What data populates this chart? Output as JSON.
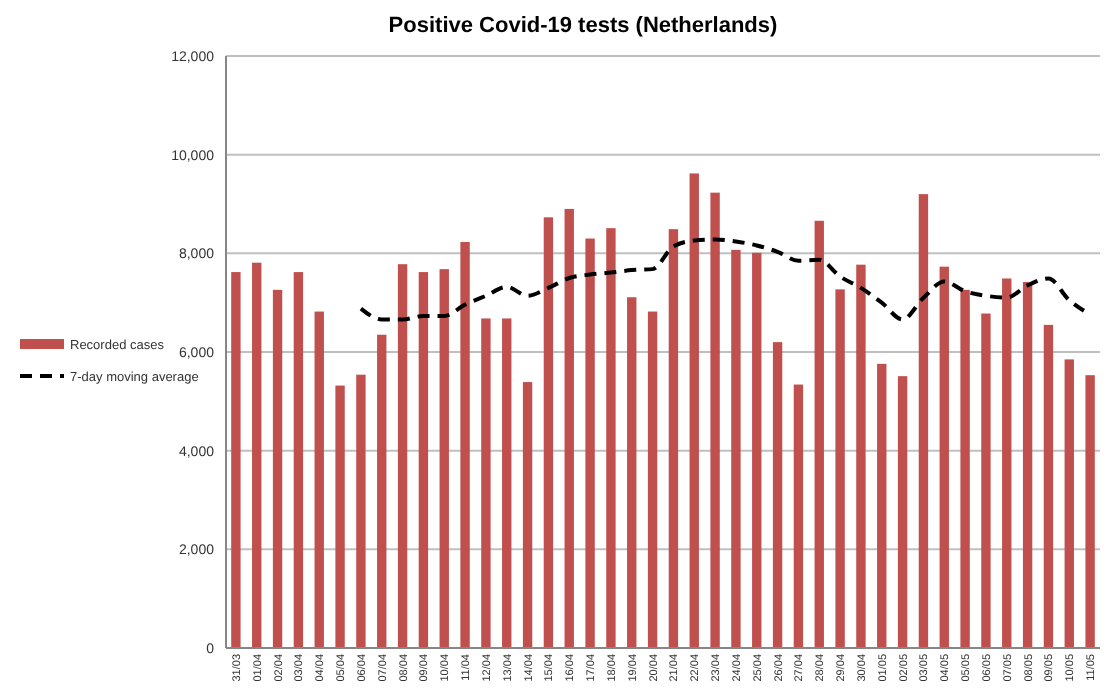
{
  "chart_data": {
    "type": "bar",
    "title": "Positive Covid-19 tests (Netherlands)",
    "categories": [
      "31/03",
      "01/04",
      "02/04",
      "03/04",
      "04/04",
      "05/04",
      "06/04",
      "07/04",
      "08/04",
      "09/04",
      "10/04",
      "11/04",
      "12/04",
      "13/04",
      "14/04",
      "15/04",
      "16/04",
      "17/04",
      "18/04",
      "19/04",
      "20/04",
      "21/04",
      "22/04",
      "23/04",
      "24/04",
      "25/04",
      "26/04",
      "27/04",
      "28/04",
      "29/04",
      "30/04",
      "01/05",
      "02/05",
      "03/05",
      "04/05",
      "05/05",
      "06/05",
      "07/05",
      "08/05",
      "09/05",
      "10/05",
      "11/05"
    ],
    "series": [
      {
        "name": "Recorded cases",
        "color": "#c0504d",
        "values": [
          7620,
          7810,
          7260,
          7620,
          6820,
          5320,
          5540,
          6350,
          7780,
          7620,
          7680,
          8230,
          6680,
          6680,
          5390,
          8730,
          8900,
          8300,
          8510,
          7110,
          6820,
          8490,
          9620,
          9230,
          8070,
          8010,
          6200,
          5340,
          8660,
          7270,
          7770,
          5760,
          5510,
          9200,
          7730,
          7260,
          6780,
          7490,
          7420,
          6550,
          5850,
          5530
        ]
      },
      {
        "name": "7-day moving average",
        "type": "line",
        "line_style": "dashed",
        "color": "#000000",
        "values": [
          null,
          null,
          null,
          null,
          null,
          null,
          6880,
          6660,
          6660,
          6730,
          6730,
          6960,
          7140,
          7320,
          7140,
          7300,
          7500,
          7570,
          7610,
          7660,
          7680,
          8140,
          8260,
          8280,
          8240,
          8160,
          8030,
          7850,
          7870,
          7530,
          7300,
          7000,
          6660,
          7100,
          7430,
          7230,
          7140,
          7100,
          7350,
          7490,
          7050,
          6760
        ]
      }
    ],
    "ylim": [
      0,
      12000
    ],
    "yticks": [
      0,
      {
        "value": 2000,
        "label": "2,000"
      },
      {
        "value": 4000,
        "label": "4,000"
      },
      {
        "value": 6000,
        "label": "6,000"
      },
      {
        "value": 8000,
        "label": "8,000"
      },
      {
        "value": 10000,
        "label": "10,000"
      },
      {
        "value": 12000,
        "label": "12,000"
      }
    ],
    "grid": "y",
    "legend": "left"
  }
}
